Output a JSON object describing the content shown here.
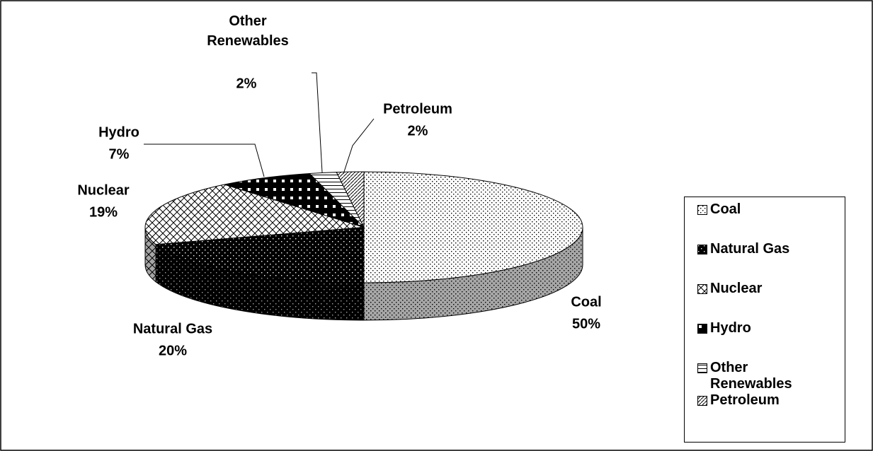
{
  "chart_data": {
    "type": "pie",
    "categories": [
      "Coal",
      "Natural Gas",
      "Nuclear",
      "Hydro",
      "Other Renewables",
      "Petroleum"
    ],
    "values": [
      50,
      20,
      19,
      7,
      2,
      2
    ],
    "value_labels": [
      "50%",
      "20%",
      "19%",
      "7%",
      "2%",
      "2%"
    ],
    "legend": "right"
  }
}
